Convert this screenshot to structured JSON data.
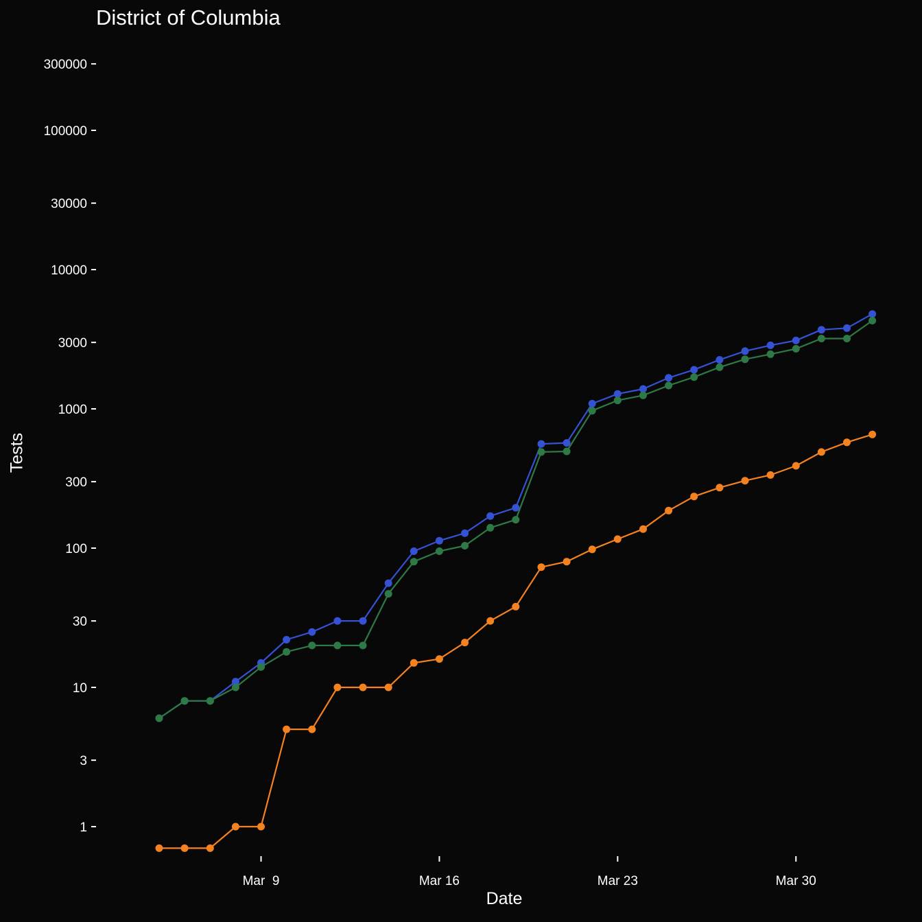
{
  "chart_data": {
    "type": "line",
    "title": "District of Columbia",
    "xlabel": "Date",
    "ylabel": "Tests",
    "y_scale": "log",
    "grid": false,
    "background": "#080808",
    "x_ticks": [
      "Mar  9",
      "Mar 16",
      "Mar 23",
      "Mar 30"
    ],
    "x_tick_dates": [
      "2020-03-09",
      "2020-03-16",
      "2020-03-23",
      "2020-03-30"
    ],
    "y_ticks": [
      {
        "value": 1,
        "label": "1"
      },
      {
        "value": 3,
        "label": "3"
      },
      {
        "value": 10,
        "label": "10"
      },
      {
        "value": 30,
        "label": "30"
      },
      {
        "value": 100,
        "label": "100"
      },
      {
        "value": 300,
        "label": "300"
      },
      {
        "value": 1000,
        "label": "1000"
      },
      {
        "value": 3000,
        "label": "3000"
      },
      {
        "value": 10000,
        "label": "10000"
      },
      {
        "value": 30000,
        "label": "30000"
      },
      {
        "value": 100000,
        "label": "100000"
      },
      {
        "value": 300000,
        "label": "300000"
      }
    ],
    "ylim": [
      0.55,
      450000
    ],
    "xlim": [
      "2020-03-04",
      "2020-04-04"
    ],
    "x": [
      "2020-03-05",
      "2020-03-06",
      "2020-03-07",
      "2020-03-08",
      "2020-03-09",
      "2020-03-10",
      "2020-03-11",
      "2020-03-12",
      "2020-03-13",
      "2020-03-14",
      "2020-03-15",
      "2020-03-16",
      "2020-03-17",
      "2020-03-18",
      "2020-03-19",
      "2020-03-20",
      "2020-03-21",
      "2020-03-22",
      "2020-03-23",
      "2020-03-24",
      "2020-03-25",
      "2020-03-26",
      "2020-03-27",
      "2020-03-28",
      "2020-03-29",
      "2020-03-30",
      "2020-03-31",
      "2020-04-01",
      "2020-04-02",
      "2020-04-03"
    ],
    "series": [
      {
        "color": "#3552d4",
        "values": [
          6,
          8,
          8,
          11,
          15,
          22,
          25,
          30,
          30,
          56,
          95,
          113,
          128,
          170,
          195,
          560,
          570,
          1090,
          1280,
          1390,
          1670,
          1910,
          2250,
          2600,
          2860,
          3100,
          3700,
          3800,
          4800,
          null
        ]
      },
      {
        "color": "#2e7a47",
        "values": [
          6,
          8,
          8,
          10,
          14,
          18,
          20,
          20,
          20,
          47,
          80,
          95,
          104,
          140,
          160,
          490,
          495,
          970,
          1150,
          1250,
          1470,
          1690,
          1990,
          2270,
          2470,
          2700,
          3200,
          3200,
          4300,
          null
        ]
      },
      {
        "color": "#f58220",
        "values": [
          0.7,
          0.7,
          0.7,
          1,
          1,
          5,
          5,
          10,
          10,
          10,
          15,
          16,
          21,
          30,
          38,
          73,
          80,
          98,
          116,
          137,
          186,
          235,
          272,
          305,
          335,
          390,
          490,
          575,
          655,
          null
        ]
      }
    ]
  }
}
